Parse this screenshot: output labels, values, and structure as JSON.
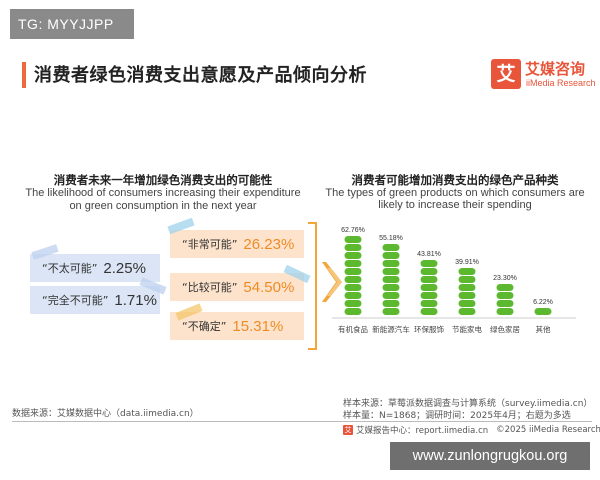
{
  "watermark_top": "TG: MYYJJPP",
  "watermark_bottom": "www.zunlongrugkou.org",
  "page_title": "消费者绿色消费支出意愿及产品倾向分析",
  "logo": {
    "icon_char": "艾",
    "cn": "艾媒咨询",
    "en": "iiMedia Research",
    "accent": "#e8553a"
  },
  "left_section": {
    "title": "消费者未来一年增加绿色消费支出的可能性",
    "subtitle_line1": "The likelihood of consumers increasing their expenditure",
    "subtitle_line2": "on green consumption in the next year",
    "notes": [
      {
        "label": "“非常可能”",
        "value": "26.23%"
      },
      {
        "label": "“不太可能”",
        "value": "2.25%"
      },
      {
        "label": "“比较可能”",
        "value": "54.50%"
      },
      {
        "label": "“完全不可能”",
        "value": "1.71%"
      },
      {
        "label": "“不确定”",
        "value": "15.31%"
      }
    ]
  },
  "chart_data": {
    "type": "bar",
    "title": "消费者可能增加消费支出的绿色产品种类",
    "subtitle": "The types of green products on which consumers are likely to increase their spending",
    "categories": [
      "有机食品",
      "新能源汽车",
      "环保服饰",
      "节能家电",
      "绿色家居",
      "其他"
    ],
    "values": [
      62.76,
      55.18,
      43.81,
      39.91,
      23.3,
      6.22
    ],
    "value_labels": [
      "62.76%",
      "55.18%",
      "43.81%",
      "39.91%",
      "23.30%",
      "6.22%"
    ],
    "unit": "%",
    "ylim": [
      0,
      65
    ],
    "grid": false,
    "bar_color": "#5cb82e"
  },
  "source_left": "数据来源：艾媒数据中心（data.iimedia.cn）",
  "source_right_line1": "样本来源：草莓派数据调查与计算系统（survey.iimedia.cn）",
  "source_right_line2": "样本量：N=1868；调研时间：2025年4月；右题为多选",
  "footer": {
    "label": "艾媒报告中心：report.iimedia.cn",
    "copyright": "©2025  iiMedia Research  Inc"
  }
}
